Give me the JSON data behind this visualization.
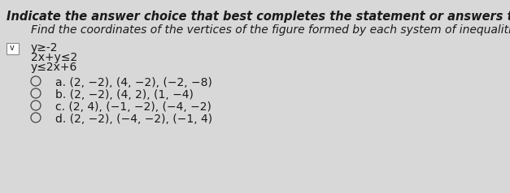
{
  "title": "Indicate the answer choice that best completes the statement or answers the question.",
  "subtitle": "Find the coordinates of the vertices of the figure formed by each system of inequalities.",
  "inequalities": [
    "y≥-2",
    "2x+y≤2",
    "y≤2x+6"
  ],
  "choices": [
    {
      "letter": "a",
      "text": "(2, −2), (4, −2), (−2, −8)"
    },
    {
      "letter": "b",
      "text": "(2, −2), (4, 2), (1, −4)"
    },
    {
      "letter": "c",
      "text": "(2, 4), (−1, −2), (−4, −2)"
    },
    {
      "letter": "d",
      "text": "(2, −2), (−4, −2), (−1, 4)"
    }
  ],
  "bg_color": "#d8d8d8",
  "text_color": "#1a1a1a",
  "title_fontsize": 10.5,
  "subtitle_fontsize": 10,
  "body_fontsize": 10,
  "choice_fontsize": 10,
  "checkbox_color": "#888888"
}
